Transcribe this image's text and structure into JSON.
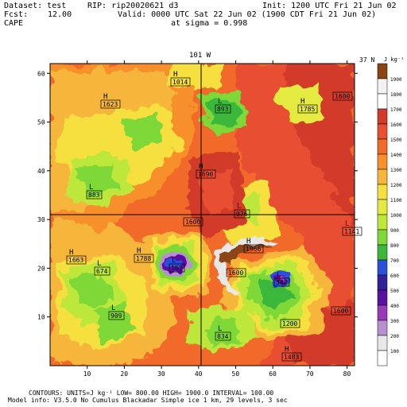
{
  "header": {
    "dataset": "Dataset: test",
    "rip": "RIP: rip20020621 d3",
    "init": "Init: 1200 UTC Fri 21 Jun 02",
    "fcst_label": "Fcst:",
    "fcst_value": "12.00",
    "valid": "Valid: 0000 UTC Sat 22 Jun 02 (1900 CDT Fri 21 Jun 02)",
    "field": "CAPE",
    "sigma": "at sigma = 0.998"
  },
  "map": {
    "top_label": "101 W",
    "right_label": "37 N",
    "x_ticks": [
      "10",
      "20",
      "30",
      "40",
      "50",
      "60",
      "70",
      "80"
    ],
    "y_ticks": [
      "10",
      "20",
      "30",
      "40",
      "50",
      "60"
    ],
    "markers": [
      {
        "type": "H",
        "value": "1014"
      },
      {
        "type": "H",
        "value": "1623"
      },
      {
        "type": "L",
        "value": "893"
      },
      {
        "type": "H",
        "value": "1785"
      },
      {
        "type": "",
        "value": "1600"
      },
      {
        "type": "L",
        "value": "883"
      },
      {
        "type": "H",
        "value": "1690"
      },
      {
        "type": "L",
        "value": "976"
      },
      {
        "type": "",
        "value": "1600"
      },
      {
        "type": "L",
        "value": "1141"
      },
      {
        "type": "H",
        "value": "1663"
      },
      {
        "type": "H",
        "value": "1788"
      },
      {
        "type": "L",
        "value": "674"
      },
      {
        "type": "L",
        "value": "162"
      },
      {
        "type": "H",
        "value": "1966"
      },
      {
        "type": "",
        "value": "1600"
      },
      {
        "type": "L",
        "value": "342"
      },
      {
        "type": "L",
        "value": "909"
      },
      {
        "type": "",
        "value": "1600"
      },
      {
        "type": "",
        "value": "1200"
      },
      {
        "type": "L",
        "value": "834"
      },
      {
        "type": "H",
        "value": "1483"
      }
    ]
  },
  "legend": {
    "units": "J kg⁻¹",
    "levels": [
      "1900",
      "1800",
      "1700",
      "1600",
      "1500",
      "1400",
      "1300",
      "1200",
      "1100",
      "1000",
      "900",
      "800",
      "700",
      "600",
      "500",
      "400",
      "300",
      "200",
      "100"
    ],
    "colors": [
      "#8b4513",
      "#f2f2f2",
      "#ffffff",
      "#d23a2a",
      "#e85030",
      "#f26a2a",
      "#f7902a",
      "#f5b63a",
      "#f5e040",
      "#e5ea40",
      "#bde83a",
      "#7ed838",
      "#3ab83a",
      "#2a50d8",
      "#30209a",
      "#5a10a0",
      "#9a3ab8",
      "#b890d0",
      "#e8e8e8",
      "#ffffff"
    ]
  },
  "footer": {
    "line1": "CONTOURS: UNITS=J kg⁻¹ LOW= 800.00 HIGH= 1900.0 INTERVAL= 100.00",
    "line2": "Model info: V3.5.0 No Cumulus Blackadar Simple ice 1 km, 29 levels, 3 sec"
  }
}
